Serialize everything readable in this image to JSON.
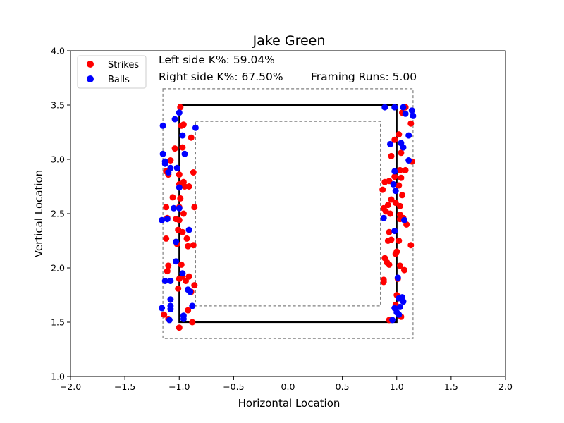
{
  "chart_data": {
    "type": "scatter",
    "title": "Jake Green",
    "xlabel": "Horizontal Location",
    "ylabel": "Vertical Location",
    "xlim": [
      -2.0,
      2.0
    ],
    "ylim": [
      1.0,
      4.0
    ],
    "xticks": [
      "−2.0",
      "−1.5",
      "−1.0",
      "−0.5",
      "0.0",
      "0.5",
      "1.0",
      "1.5",
      "2.0"
    ],
    "yticks": [
      "1.0",
      "1.5",
      "2.0",
      "2.5",
      "3.0",
      "3.5",
      "4.0"
    ],
    "xtick_values": [
      -2.0,
      -1.5,
      -1.0,
      -0.5,
      0.0,
      0.5,
      1.0,
      1.5,
      2.0
    ],
    "ytick_values": [
      1.0,
      1.5,
      2.0,
      2.5,
      3.0,
      3.5,
      4.0
    ],
    "legend_position": "top-left",
    "grid": false,
    "annotations": {
      "left_k": "Left side K%: 59.04%",
      "right_k": "Right side K%: 67.50%",
      "framing": "Framing Runs: 5.00"
    },
    "strike_zone": {
      "x": [
        -1.0,
        1.0
      ],
      "y": [
        1.5,
        3.5
      ]
    },
    "outer_zone": {
      "x": [
        -1.15,
        1.15
      ],
      "y": [
        1.35,
        3.65
      ]
    },
    "inner_zone": {
      "x": [
        -0.85,
        0.85
      ],
      "y": [
        1.65,
        3.35
      ]
    },
    "series": [
      {
        "name": "Strikes",
        "color": "#ff0000",
        "points": [
          [
            -0.99,
            3.48
          ],
          [
            -0.98,
            3.31
          ],
          [
            -0.96,
            3.32
          ],
          [
            -0.89,
            3.2
          ],
          [
            -1.04,
            3.1
          ],
          [
            -0.97,
            3.11
          ],
          [
            -1.12,
            2.89
          ],
          [
            -1.1,
            2.86
          ],
          [
            -1.08,
            2.99
          ],
          [
            -0.87,
            2.88
          ],
          [
            -1.0,
            2.86
          ],
          [
            -0.96,
            2.79
          ],
          [
            -1.0,
            2.77
          ],
          [
            -0.95,
            2.75
          ],
          [
            -0.91,
            2.75
          ],
          [
            -1.06,
            2.65
          ],
          [
            -0.99,
            2.64
          ],
          [
            -1.12,
            2.56
          ],
          [
            -1.0,
            2.56
          ],
          [
            -0.86,
            2.56
          ],
          [
            -1.11,
            2.46
          ],
          [
            -1.03,
            2.45
          ],
          [
            -1.0,
            2.44
          ],
          [
            -0.96,
            2.5
          ],
          [
            -1.01,
            2.35
          ],
          [
            -0.97,
            2.33
          ],
          [
            -1.12,
            2.27
          ],
          [
            -0.93,
            2.27
          ],
          [
            -1.02,
            2.22
          ],
          [
            -0.92,
            2.2
          ],
          [
            -0.87,
            2.21
          ],
          [
            -0.98,
            2.03
          ],
          [
            -1.1,
            2.02
          ],
          [
            -1.11,
            1.97
          ],
          [
            -0.97,
            1.92
          ],
          [
            -0.91,
            1.92
          ],
          [
            -1.0,
            1.9
          ],
          [
            -0.94,
            1.88
          ],
          [
            -1.01,
            1.81
          ],
          [
            -0.86,
            1.84
          ],
          [
            -0.89,
            1.78
          ],
          [
            -0.92,
            1.61
          ],
          [
            -1.14,
            1.57
          ],
          [
            -1.1,
            1.53
          ],
          [
            -0.88,
            1.5
          ],
          [
            -1.0,
            1.45
          ],
          [
            1.08,
            3.48
          ],
          [
            1.05,
            3.43
          ],
          [
            1.13,
            3.33
          ],
          [
            0.98,
            3.18
          ],
          [
            1.02,
            3.23
          ],
          [
            1.04,
            3.06
          ],
          [
            0.95,
            3.03
          ],
          [
            1.03,
            2.9
          ],
          [
            1.08,
            2.9
          ],
          [
            1.14,
            2.98
          ],
          [
            0.98,
            2.84
          ],
          [
            1.04,
            2.83
          ],
          [
            0.93,
            2.8
          ],
          [
            0.89,
            2.79
          ],
          [
            0.87,
            2.72
          ],
          [
            1.02,
            2.76
          ],
          [
            1.05,
            2.67
          ],
          [
            0.95,
            2.63
          ],
          [
            0.99,
            2.6
          ],
          [
            0.92,
            2.58
          ],
          [
            0.88,
            2.55
          ],
          [
            1.03,
            2.57
          ],
          [
            0.9,
            2.52
          ],
          [
            0.94,
            2.5
          ],
          [
            1.03,
            2.49
          ],
          [
            1.06,
            2.46
          ],
          [
            1.09,
            2.4
          ],
          [
            1.03,
            2.45
          ],
          [
            0.93,
            2.33
          ],
          [
            0.95,
            2.26
          ],
          [
            0.92,
            2.25
          ],
          [
            1.02,
            2.25
          ],
          [
            1.13,
            2.21
          ],
          [
            1.0,
            2.15
          ],
          [
            0.99,
            2.13
          ],
          [
            0.89,
            2.09
          ],
          [
            0.91,
            2.05
          ],
          [
            0.93,
            2.03
          ],
          [
            1.03,
            2.02
          ],
          [
            1.07,
            1.98
          ],
          [
            0.88,
            1.89
          ],
          [
            0.88,
            1.87
          ],
          [
            1.01,
            1.9
          ],
          [
            1.0,
            1.75
          ],
          [
            0.99,
            1.66
          ],
          [
            1.04,
            1.55
          ],
          [
            0.93,
            1.52
          ]
        ]
      },
      {
        "name": "Balls",
        "color": "#0000ff",
        "points": [
          [
            -1.0,
            3.43
          ],
          [
            -1.15,
            3.31
          ],
          [
            -1.04,
            3.37
          ],
          [
            -0.85,
            3.29
          ],
          [
            -0.97,
            3.22
          ],
          [
            -0.95,
            3.05
          ],
          [
            -1.15,
            3.05
          ],
          [
            -1.13,
            2.98
          ],
          [
            -1.13,
            2.96
          ],
          [
            -1.08,
            2.92
          ],
          [
            -1.02,
            2.92
          ],
          [
            -1.1,
            2.88
          ],
          [
            -1.0,
            2.74
          ],
          [
            -1.05,
            2.55
          ],
          [
            -1.0,
            2.55
          ],
          [
            -1.16,
            2.44
          ],
          [
            -1.11,
            2.45
          ],
          [
            -0.91,
            2.35
          ],
          [
            -1.03,
            2.24
          ],
          [
            -1.03,
            2.06
          ],
          [
            -0.97,
            1.95
          ],
          [
            -1.13,
            1.88
          ],
          [
            -1.08,
            1.88
          ],
          [
            -0.92,
            1.8
          ],
          [
            -0.9,
            1.78
          ],
          [
            -1.08,
            1.71
          ],
          [
            -1.08,
            1.65
          ],
          [
            -0.88,
            1.65
          ],
          [
            -1.16,
            1.63
          ],
          [
            -1.08,
            1.62
          ],
          [
            -0.96,
            1.56
          ],
          [
            -0.96,
            1.53
          ],
          [
            -1.09,
            1.52
          ],
          [
            0.89,
            3.48
          ],
          [
            0.98,
            3.48
          ],
          [
            1.06,
            3.48
          ],
          [
            1.14,
            3.45
          ],
          [
            1.08,
            3.42
          ],
          [
            1.15,
            3.4
          ],
          [
            1.11,
            3.22
          ],
          [
            0.94,
            3.14
          ],
          [
            1.04,
            3.15
          ],
          [
            1.06,
            3.11
          ],
          [
            1.11,
            2.99
          ],
          [
            0.98,
            2.89
          ],
          [
            0.97,
            2.77
          ],
          [
            0.99,
            2.71
          ],
          [
            0.88,
            2.46
          ],
          [
            1.07,
            2.44
          ],
          [
            0.98,
            2.34
          ],
          [
            1.01,
            1.91
          ],
          [
            1.05,
            1.73
          ],
          [
            1.02,
            1.72
          ],
          [
            1.06,
            1.69
          ],
          [
            1.03,
            1.64
          ],
          [
            0.98,
            1.63
          ],
          [
            1.0,
            1.59
          ],
          [
            1.02,
            1.57
          ],
          [
            0.96,
            1.52
          ]
        ]
      }
    ]
  }
}
